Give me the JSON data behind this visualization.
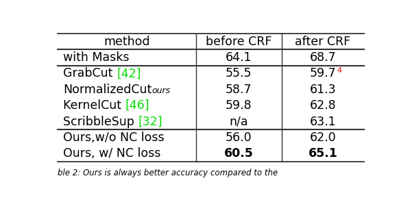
{
  "col_headers": [
    "method",
    "before CRF",
    "after CRF"
  ],
  "rows": [
    {
      "method_parts": [
        {
          "text": "with Masks",
          "color": "black",
          "style": "normal",
          "size_scale": 1.0
        }
      ],
      "before_crf": {
        "text": "64.1",
        "color": "black",
        "bold": false
      },
      "after_crf": {
        "text": "68.7",
        "color": "black",
        "bold": false,
        "superscript": null
      },
      "sep_above": true,
      "sep_below": true,
      "group": 0
    },
    {
      "method_parts": [
        {
          "text": "GrabCut ",
          "color": "black",
          "style": "normal",
          "size_scale": 1.0
        },
        {
          "text": "[42]",
          "color": "#00dd00",
          "style": "normal",
          "size_scale": 1.0
        }
      ],
      "before_crf": {
        "text": "55.5",
        "color": "black",
        "bold": false
      },
      "after_crf": {
        "text": "59.7",
        "color": "black",
        "bold": false,
        "superscript": {
          "text": "4",
          "color": "red"
        }
      },
      "sep_above": true,
      "sep_below": false,
      "group": 1
    },
    {
      "method_parts": [
        {
          "text": "NormalizedCut",
          "color": "black",
          "style": "normal",
          "size_scale": 1.0
        },
        {
          "text": "ours",
          "color": "black",
          "style": "italic",
          "size_scale": 0.72
        }
      ],
      "before_crf": {
        "text": "58.7",
        "color": "black",
        "bold": false
      },
      "after_crf": {
        "text": "61.3",
        "color": "black",
        "bold": false,
        "superscript": null
      },
      "sep_above": false,
      "sep_below": false,
      "group": 1
    },
    {
      "method_parts": [
        {
          "text": "KernelCut ",
          "color": "black",
          "style": "normal",
          "size_scale": 1.0
        },
        {
          "text": "[46]",
          "color": "#00dd00",
          "style": "normal",
          "size_scale": 1.0
        }
      ],
      "before_crf": {
        "text": "59.8",
        "color": "black",
        "bold": false
      },
      "after_crf": {
        "text": "62.8",
        "color": "black",
        "bold": false,
        "superscript": null
      },
      "sep_above": false,
      "sep_below": false,
      "group": 1
    },
    {
      "method_parts": [
        {
          "text": "ScribbleSup ",
          "color": "black",
          "style": "normal",
          "size_scale": 1.0
        },
        {
          "text": "[32]",
          "color": "#00dd00",
          "style": "normal",
          "size_scale": 1.0
        }
      ],
      "before_crf": {
        "text": "n/a",
        "color": "black",
        "bold": false
      },
      "after_crf": {
        "text": "63.1",
        "color": "black",
        "bold": false,
        "superscript": null
      },
      "sep_above": false,
      "sep_below": true,
      "group": 1
    },
    {
      "method_parts": [
        {
          "text": "Ours,w/o NC loss",
          "color": "black",
          "style": "normal",
          "size_scale": 1.0
        }
      ],
      "before_crf": {
        "text": "56.0",
        "color": "black",
        "bold": false
      },
      "after_crf": {
        "text": "62.0",
        "color": "black",
        "bold": false,
        "superscript": null
      },
      "sep_above": true,
      "sep_below": false,
      "group": 2
    },
    {
      "method_parts": [
        {
          "text": "Ours, w/ NC loss",
          "color": "black",
          "style": "normal",
          "size_scale": 1.0
        }
      ],
      "before_crf": {
        "text": "60.5",
        "color": "black",
        "bold": true
      },
      "after_crf": {
        "text": "65.1",
        "color": "black",
        "bold": true,
        "superscript": null
      },
      "sep_above": false,
      "sep_below": true,
      "group": 2
    }
  ],
  "caption": "ble 2: Ours is always better accuracy compared to the",
  "bg_color": "white",
  "line_color": "#333333",
  "font_size": 12.5
}
